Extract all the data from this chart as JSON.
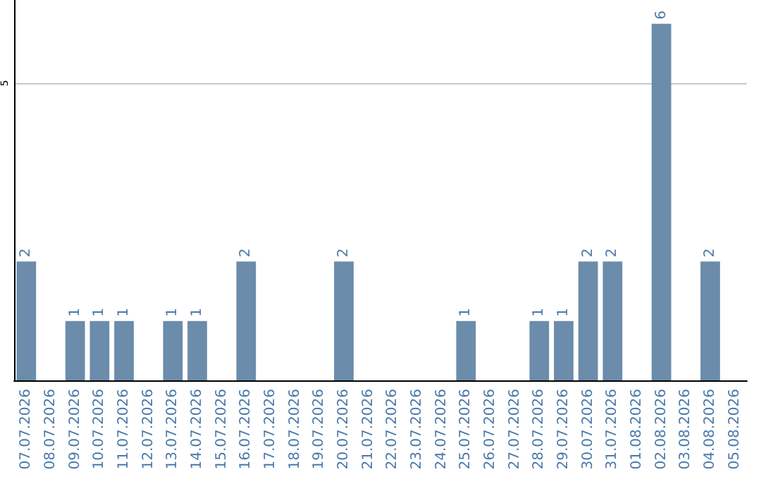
{
  "chart_data": {
    "type": "bar",
    "categories": [
      "07.07.2026",
      "08.07.2026",
      "09.07.2026",
      "10.07.2026",
      "11.07.2026",
      "12.07.2026",
      "13.07.2026",
      "14.07.2026",
      "15.07.2026",
      "16.07.2026",
      "17.07.2026",
      "18.07.2026",
      "19.07.2026",
      "20.07.2026",
      "21.07.2026",
      "22.07.2026",
      "23.07.2026",
      "24.07.2026",
      "25.07.2026",
      "26.07.2026",
      "27.07.2026",
      "28.07.2026",
      "29.07.2026",
      "30.07.2026",
      "31.07.2026",
      "01.08.2026",
      "02.08.2026",
      "03.08.2026",
      "04.08.2026",
      "05.08.2026"
    ],
    "values": [
      2,
      0,
      1,
      1,
      1,
      0,
      1,
      1,
      0,
      2,
      0,
      0,
      0,
      2,
      0,
      0,
      0,
      0,
      1,
      0,
      0,
      1,
      1,
      2,
      2,
      0,
      6,
      0,
      2,
      0
    ],
    "value_labels": [
      "2",
      null,
      "1",
      "1",
      "1",
      null,
      "1",
      "1",
      null,
      "2",
      null,
      null,
      null,
      "2",
      null,
      null,
      null,
      null,
      "1",
      null,
      null,
      "1",
      "1",
      "2",
      "2",
      null,
      "6",
      null,
      "2",
      null
    ],
    "color": "#6b8cab",
    "ylim": [
      0,
      6.4
    ],
    "yticks": [
      5
    ],
    "grid": "y"
  }
}
